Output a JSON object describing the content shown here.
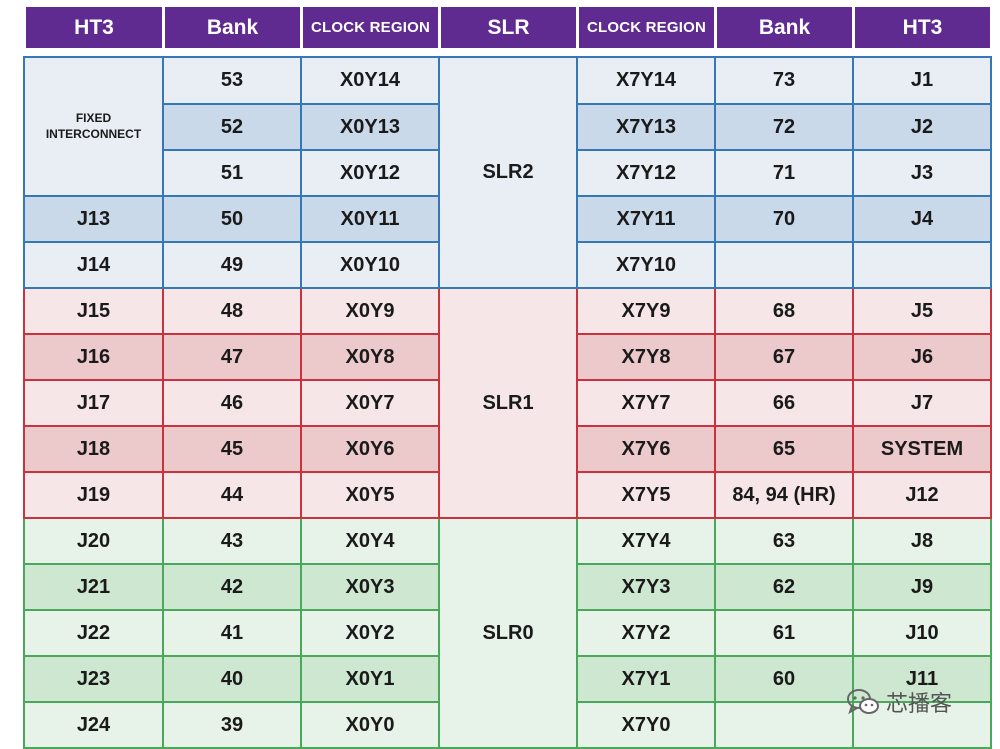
{
  "header": [
    "HT3",
    "Bank",
    "CLOCK REGION",
    "SLR",
    "CLOCK REGION",
    "Bank",
    "HT3"
  ],
  "fixed_label": [
    "FIXED",
    "INTERCONNECT"
  ],
  "slr_labels": [
    "SLR2",
    "SLR1",
    "SLR0"
  ],
  "rows": [
    {
      "left_ht3": "",
      "left_bank": "53",
      "left_cr": "X0Y14",
      "right_cr": "X7Y14",
      "right_bank": "73",
      "right_ht3": "J1"
    },
    {
      "left_ht3": "",
      "left_bank": "52",
      "left_cr": "X0Y13",
      "right_cr": "X7Y13",
      "right_bank": "72",
      "right_ht3": "J2"
    },
    {
      "left_ht3": "",
      "left_bank": "51",
      "left_cr": "X0Y12",
      "right_cr": "X7Y12",
      "right_bank": "71",
      "right_ht3": "J3"
    },
    {
      "left_ht3": "J13",
      "left_bank": "50",
      "left_cr": "X0Y11",
      "right_cr": "X7Y11",
      "right_bank": "70",
      "right_ht3": "J4"
    },
    {
      "left_ht3": "J14",
      "left_bank": "49",
      "left_cr": "X0Y10",
      "right_cr": "X7Y10",
      "right_bank": "",
      "right_ht3": ""
    },
    {
      "left_ht3": "J15",
      "left_bank": "48",
      "left_cr": "X0Y9",
      "right_cr": "X7Y9",
      "right_bank": "68",
      "right_ht3": "J5"
    },
    {
      "left_ht3": "J16",
      "left_bank": "47",
      "left_cr": "X0Y8",
      "right_cr": "X7Y8",
      "right_bank": "67",
      "right_ht3": "J6"
    },
    {
      "left_ht3": "J17",
      "left_bank": "46",
      "left_cr": "X0Y7",
      "right_cr": "X7Y7",
      "right_bank": "66",
      "right_ht3": "J7"
    },
    {
      "left_ht3": "J18",
      "left_bank": "45",
      "left_cr": "X0Y6",
      "right_cr": "X7Y6",
      "right_bank": "65",
      "right_ht3": "SYSTEM"
    },
    {
      "left_ht3": "J19",
      "left_bank": "44",
      "left_cr": "X0Y5",
      "right_cr": "X7Y5",
      "right_bank": "84, 94 (HR)",
      "right_ht3": "J12"
    },
    {
      "left_ht3": "J20",
      "left_bank": "43",
      "left_cr": "X0Y4",
      "right_cr": "X7Y4",
      "right_bank": "63",
      "right_ht3": "J8"
    },
    {
      "left_ht3": "J21",
      "left_bank": "42",
      "left_cr": "X0Y3",
      "right_cr": "X7Y3",
      "right_bank": "62",
      "right_ht3": "J9"
    },
    {
      "left_ht3": "J22",
      "left_bank": "41",
      "left_cr": "X0Y2",
      "right_cr": "X7Y2",
      "right_bank": "61",
      "right_ht3": "J10"
    },
    {
      "left_ht3": "J23",
      "left_bank": "40",
      "left_cr": "X0Y1",
      "right_cr": "X7Y1",
      "right_bank": "60",
      "right_ht3": "J11"
    },
    {
      "left_ht3": "J24",
      "left_bank": "39",
      "left_cr": "X0Y0",
      "right_cr": "X7Y0",
      "right_bank": "",
      "right_ht3": ""
    }
  ],
  "watermark": {
    "text": "芯播客",
    "icon": "wechat-icon"
  },
  "colors": {
    "header_bg": "#5f2b91",
    "slr2_border": "#3578b8",
    "slr2_light": "#e9eef4",
    "slr2_dark": "#c9d9ea",
    "slr1_border": "#c8333f",
    "slr1_light": "#f6e6e7",
    "slr1_dark": "#ecc9cb",
    "slr0_border": "#4aa85a",
    "slr0_light": "#e7f2e8",
    "slr0_dark": "#cde7d1"
  }
}
